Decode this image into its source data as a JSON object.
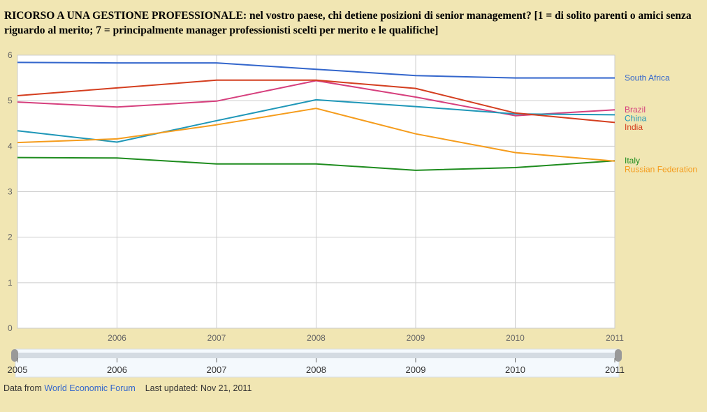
{
  "title": {
    "bold": "RICORSO A UNA GESTIONE PROFESSIONALE:",
    "rest": " nel vostro paese, chi  detiene posizioni di senior management? [1 = di solito parenti o amici senza riguardo al merito; 7 = principalmente manager professionisti scelti per merito e le qualifiche]"
  },
  "chart_data": {
    "type": "line",
    "title": "RICORSO A UNA GESTIONE PROFESSIONALE",
    "x": [
      2005,
      2006,
      2007,
      2008,
      2009,
      2010,
      2011
    ],
    "x_tick_labels": [
      "2006",
      "2007",
      "2008",
      "2009",
      "2010",
      "2011"
    ],
    "xlim": [
      2005,
      2011
    ],
    "y_tick_labels": [
      "0",
      "1",
      "2",
      "3",
      "4",
      "5",
      "6"
    ],
    "ylim": [
      0,
      6
    ],
    "grid": true,
    "legend": "right",
    "series": [
      {
        "name": "South Africa",
        "color": "#3366cc",
        "values": [
          5.84,
          5.83,
          5.83,
          5.69,
          5.55,
          5.5,
          5.5
        ]
      },
      {
        "name": "Brazil",
        "color": "#d63f7d",
        "values": [
          4.97,
          4.86,
          4.99,
          5.44,
          5.08,
          4.67,
          4.8
        ]
      },
      {
        "name": "China",
        "color": "#1f97b8",
        "values": [
          4.34,
          4.09,
          4.56,
          5.02,
          4.87,
          4.71,
          4.69
        ]
      },
      {
        "name": "India",
        "color": "#d43e1f",
        "values": [
          5.11,
          5.28,
          5.45,
          5.45,
          5.27,
          4.73,
          4.52
        ]
      },
      {
        "name": "Italy",
        "color": "#1e8c1e",
        "values": [
          3.75,
          3.74,
          3.61,
          3.61,
          3.47,
          3.53,
          3.68
        ]
      },
      {
        "name": "Russian Federation",
        "color": "#f59c1c",
        "values": [
          4.08,
          4.16,
          4.47,
          4.83,
          4.27,
          3.86,
          3.67
        ]
      }
    ],
    "range_selector": {
      "tick_labels": [
        "2005",
        "2006",
        "2007",
        "2008",
        "2009",
        "2010",
        "2011"
      ]
    }
  },
  "footer": {
    "prefix": "Data from",
    "source": "World Economic Forum",
    "updated": "Last updated: Nov 21, 2011"
  }
}
